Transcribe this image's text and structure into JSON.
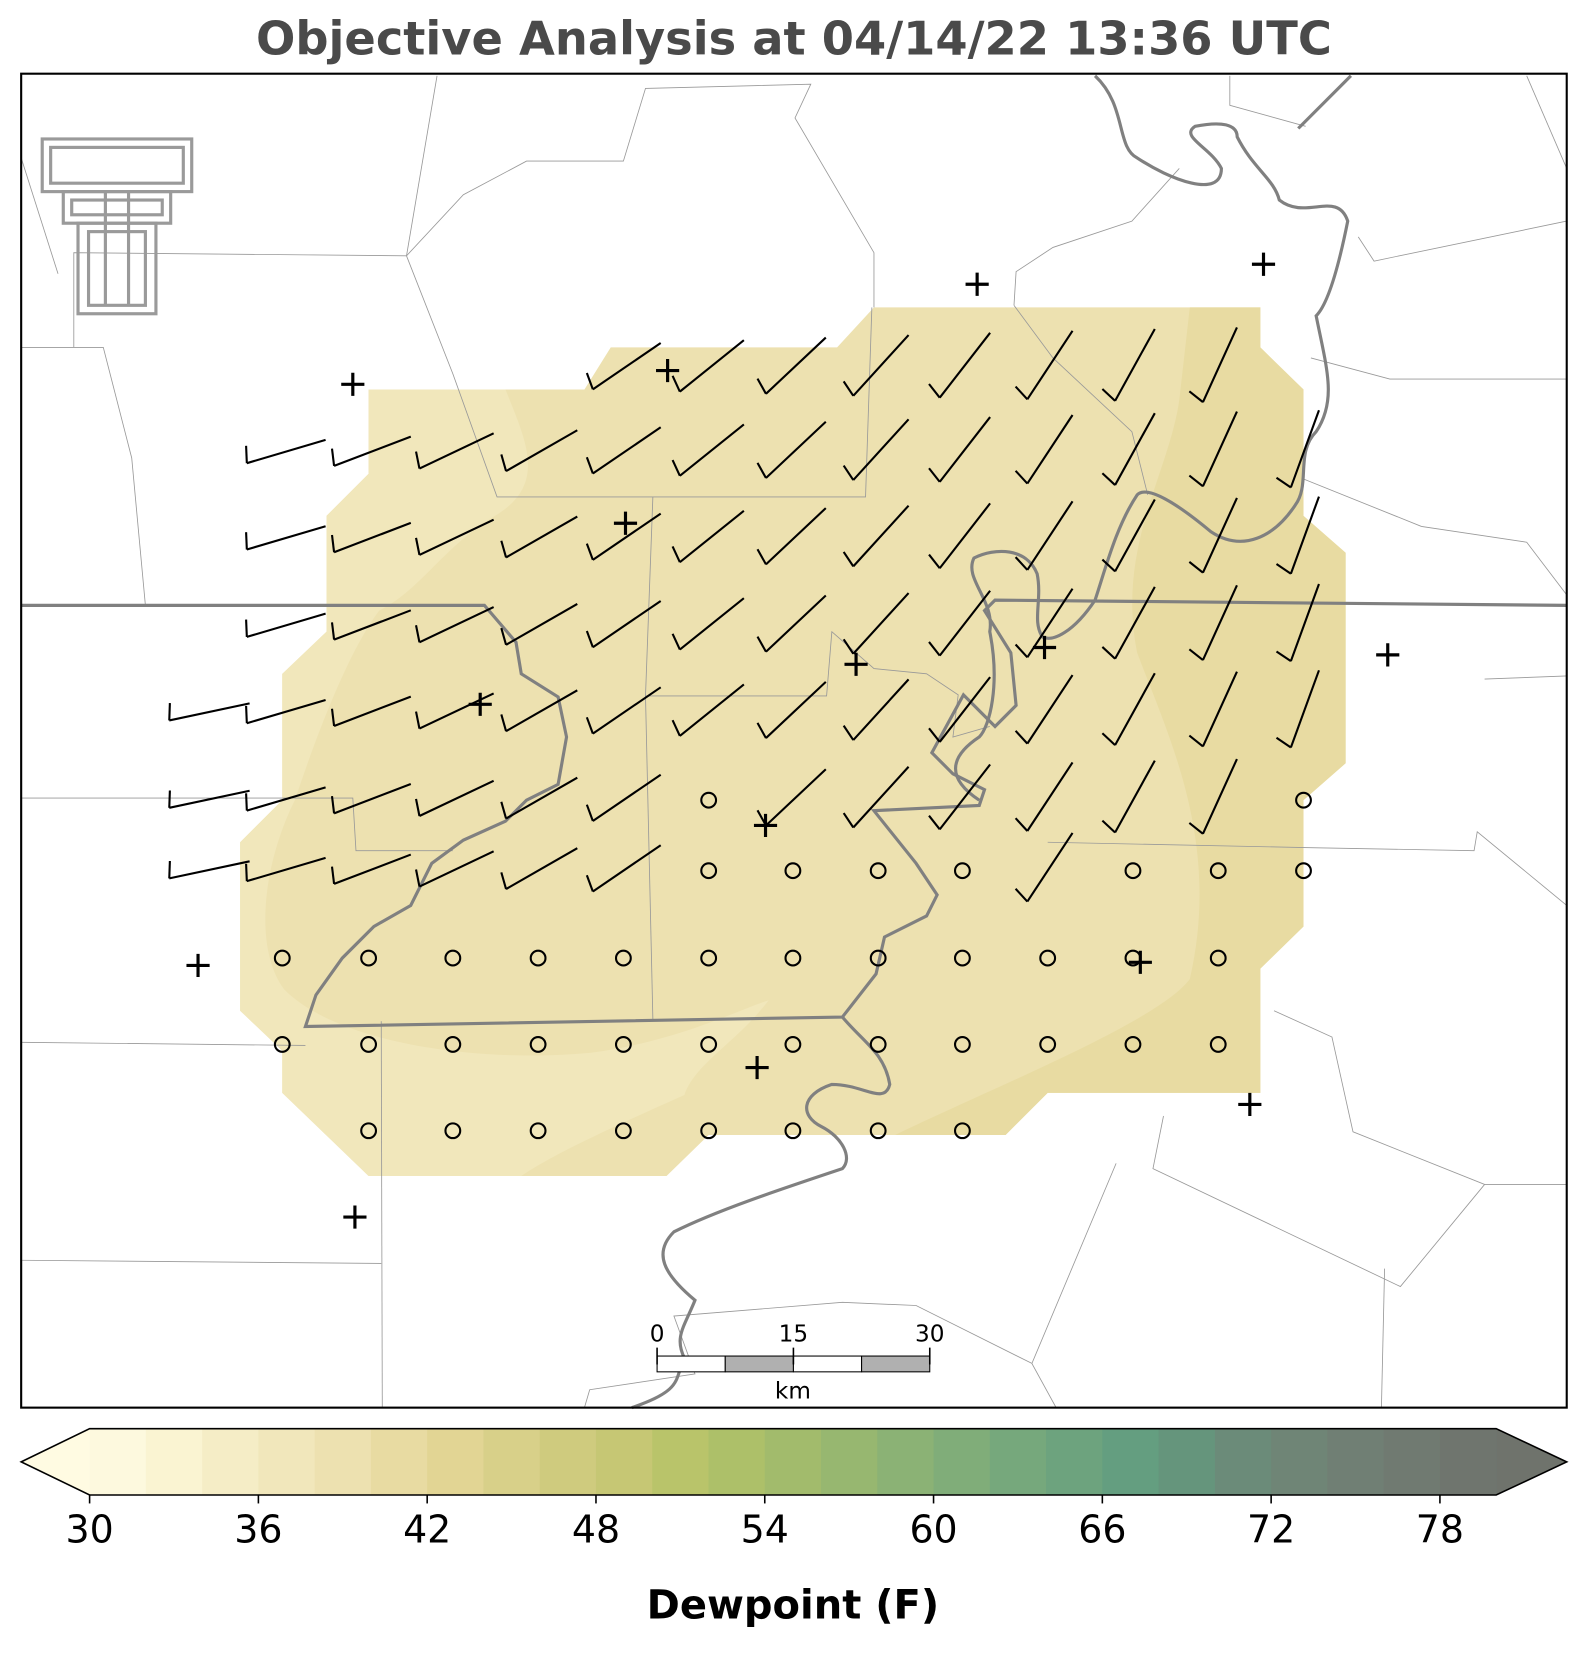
{
  "title": "Objective Analysis at 04/14/22 13:36 UTC",
  "scale_bar": {
    "ticks": [
      0,
      15,
      30
    ],
    "lim": [
      0,
      30
    ],
    "unit": "km"
  },
  "colorbar": {
    "label": "Dewpoint (F)",
    "lim": [
      30,
      80
    ],
    "ticks": [
      30,
      36,
      42,
      48,
      54,
      60,
      66,
      72,
      78
    ],
    "colors": [
      "#fdf9de",
      "#faf4d2",
      "#f5edc6",
      "#f1e7bb",
      "#ede1b0",
      "#e8dba2",
      "#e2d594",
      "#d8d089",
      "#cfcb7e",
      "#c6c774",
      "#b9c46a",
      "#adc069",
      "#a2bb6c",
      "#97b770",
      "#8bb275",
      "#80ad79",
      "#76a87c",
      "#6da37e",
      "#649e80",
      "#65957c",
      "#6b8b79",
      "#6f8576",
      "#707f74",
      "#707a71",
      "#6f756e"
    ],
    "under_color": "#fffbe2",
    "over_color": "#6f736c"
  }
}
